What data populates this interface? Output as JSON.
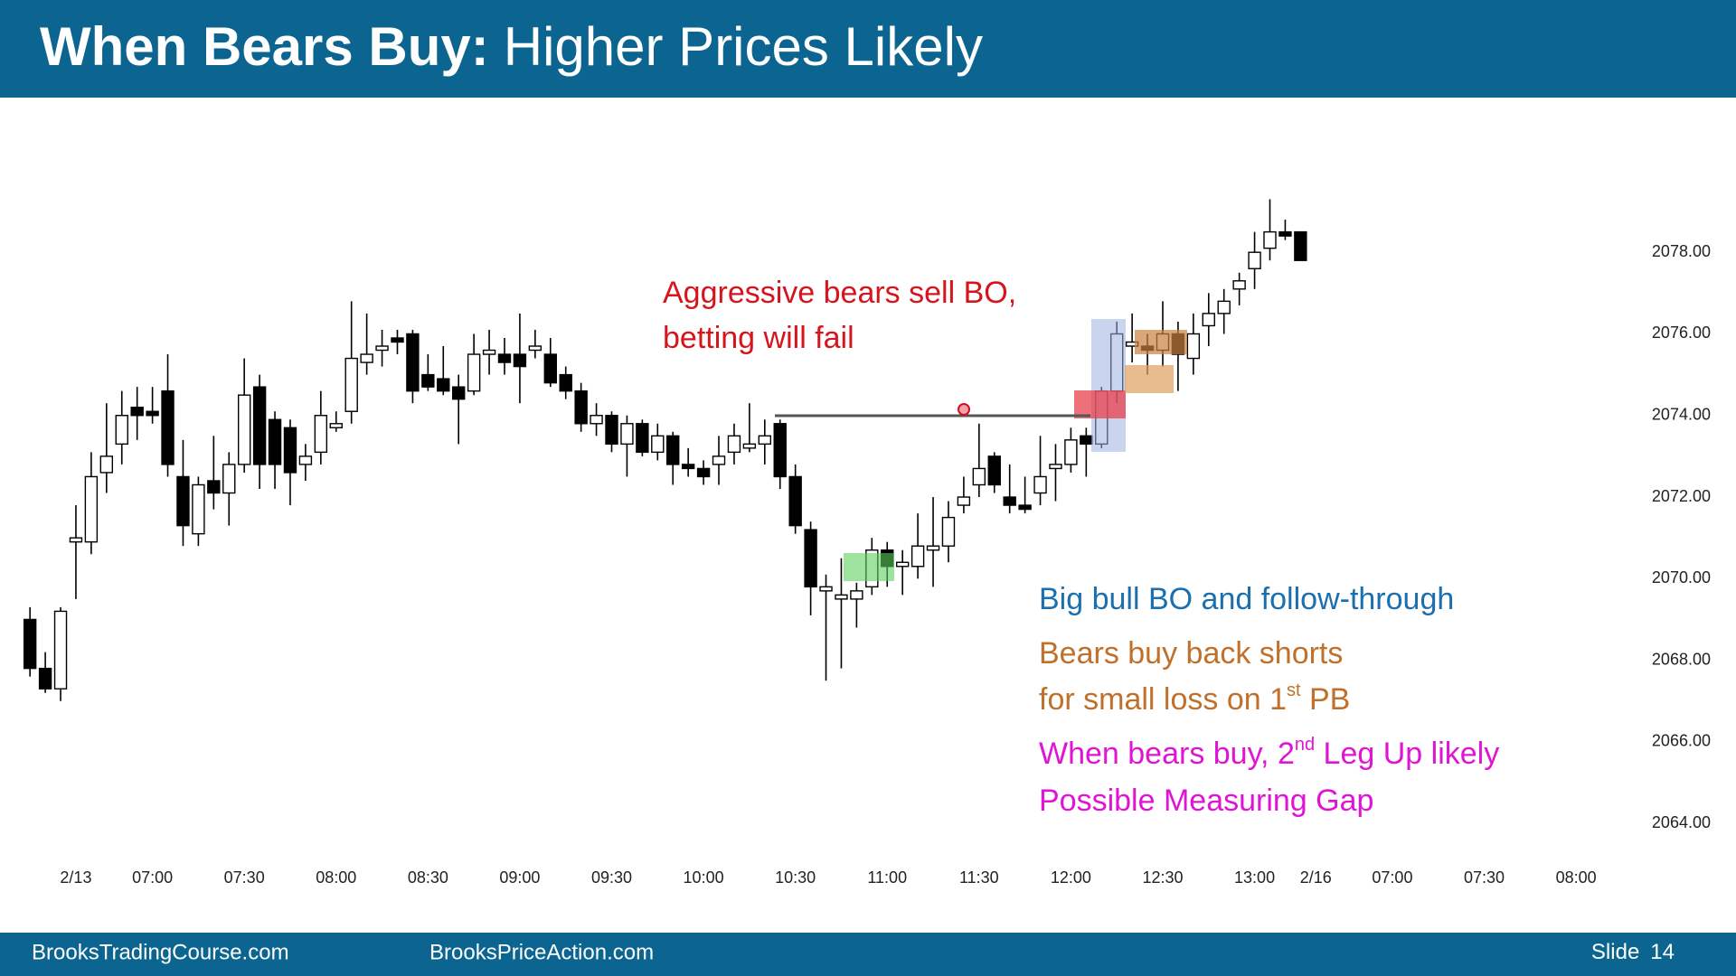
{
  "slide": {
    "title_bold": "When Bears Buy:",
    "title": "Higher Prices Likely",
    "footer_left": "BrooksTradingCourse.com",
    "footer_center": "BrooksPriceAction.com",
    "slide_label": "Slide",
    "slide_number": 14
  },
  "chart_data": {
    "type": "candlestick",
    "up_color": "#ffffff",
    "down_color": "#000000",
    "wick_color": "#000000",
    "grid": false,
    "categories": [
      null,
      null,
      null,
      "2/13",
      null,
      null,
      null,
      null,
      "07:00",
      null,
      null,
      null,
      null,
      null,
      "07:30",
      null,
      null,
      null,
      null,
      null,
      "08:00",
      null,
      null,
      null,
      null,
      null,
      "08:30",
      null,
      null,
      null,
      null,
      null,
      "09:00",
      null,
      null,
      null,
      null,
      null,
      "09:30",
      null,
      null,
      null,
      null,
      null,
      "10:00",
      null,
      null,
      null,
      null,
      null,
      "10:30",
      null,
      null,
      null,
      null,
      null,
      "11:00",
      null,
      null,
      null,
      null,
      null,
      "11:30",
      null,
      null,
      null,
      null,
      null,
      "12:00",
      null,
      null,
      null,
      null,
      null,
      "12:30",
      null,
      null,
      null,
      null,
      null,
      "13:00",
      null,
      null,
      null,
      "2/16",
      null,
      null,
      null,
      null,
      "07:00",
      null,
      null,
      null,
      null,
      null,
      "07:30",
      null,
      null,
      null,
      null,
      null,
      "08:00",
      null,
      null
    ],
    "open": [
      2069.0,
      2067.8,
      2067.3,
      2070.9,
      2070.9,
      2072.6,
      2073.3,
      2074.2,
      2074.1,
      2074.6,
      2072.5,
      2071.1,
      2072.4,
      2072.1,
      2072.8,
      2074.7,
      2073.9,
      2073.7,
      2072.8,
      2073.1,
      2073.7,
      2074.1,
      2075.3,
      2075.6,
      2075.9,
      2076.0,
      2075.0,
      2074.9,
      2074.7,
      2074.6,
      2075.5,
      2075.5,
      2075.5,
      2075.6,
      2075.5,
      2075.0,
      2074.6,
      2073.8,
      2074.0,
      2073.3,
      2073.8,
      2073.1,
      2073.5,
      2072.8,
      2072.7,
      2072.8,
      2073.1,
      2073.2,
      2073.3,
      2073.8,
      2072.5,
      2071.2,
      2069.7,
      2069.5,
      2069.5,
      2069.8,
      2070.7,
      2070.3,
      2070.3,
      2070.7,
      2070.8,
      2071.8,
      2072.3,
      2073.0,
      2072.0,
      2071.8,
      2072.1,
      2072.7,
      2072.8,
      2073.5,
      2073.3,
      2074.6,
      2075.7,
      2075.7,
      2075.6,
      2076.0,
      2075.4,
      2076.2,
      2076.5,
      2077.1,
      2077.6,
      2078.1,
      2078.5,
      2078.5,
      null,
      null,
      null,
      null,
      null,
      null,
      null,
      null,
      null,
      null,
      null,
      null,
      null,
      null,
      null,
      null,
      null,
      null,
      null,
      null
    ],
    "high": [
      2069.3,
      2068.2,
      2069.3,
      2071.8,
      2073.1,
      2074.3,
      2074.6,
      2074.7,
      2074.7,
      2075.5,
      2073.4,
      2072.5,
      2073.5,
      2073.1,
      2075.4,
      2075.0,
      2074.1,
      2073.9,
      2073.3,
      2074.6,
      2074.1,
      2076.8,
      2076.5,
      2076.1,
      2076.1,
      2076.1,
      2075.5,
      2075.7,
      2075.0,
      2076.0,
      2076.1,
      2075.9,
      2076.5,
      2076.1,
      2075.9,
      2075.2,
      2074.8,
      2074.3,
      2074.1,
      2074.0,
      2073.9,
      2073.8,
      2073.6,
      2073.2,
      2072.9,
      2073.5,
      2073.8,
      2074.3,
      2073.9,
      2073.9,
      2072.8,
      2071.4,
      2070.1,
      2070.5,
      2069.9,
      2071.0,
      2070.9,
      2070.7,
      2071.6,
      2072.0,
      2071.9,
      2072.5,
      2073.8,
      2073.1,
      2072.8,
      2072.5,
      2073.5,
      2073.3,
      2073.7,
      2073.7,
      2074.7,
      2076.3,
      2076.5,
      2076.0,
      2076.8,
      2076.3,
      2076.5,
      2077.0,
      2077.1,
      2077.5,
      2078.5,
      2079.3,
      2078.8,
      2078.5,
      null,
      null,
      null,
      null,
      null,
      null,
      null,
      null,
      null,
      null,
      null,
      null,
      null,
      null,
      null,
      null,
      null,
      null,
      null,
      null
    ],
    "low": [
      2067.6,
      2067.2,
      2067.0,
      2069.5,
      2070.6,
      2072.1,
      2072.8,
      2073.4,
      2073.8,
      2072.5,
      2070.8,
      2070.8,
      2071.7,
      2071.3,
      2072.6,
      2072.2,
      2072.2,
      2071.8,
      2072.4,
      2072.8,
      2073.6,
      2073.8,
      2075.0,
      2075.2,
      2075.5,
      2074.3,
      2074.6,
      2074.5,
      2073.3,
      2074.5,
      2075.0,
      2075.0,
      2074.3,
      2075.4,
      2074.7,
      2074.4,
      2073.6,
      2073.5,
      2073.1,
      2072.5,
      2073.0,
      2072.9,
      2072.3,
      2072.5,
      2072.3,
      2072.3,
      2072.8,
      2073.1,
      2072.8,
      2072.2,
      2071.1,
      2069.1,
      2067.5,
      2067.8,
      2068.8,
      2069.6,
      2069.8,
      2069.6,
      2070.0,
      2069.8,
      2070.4,
      2071.6,
      2072.0,
      2072.1,
      2071.6,
      2071.6,
      2071.8,
      2071.9,
      2072.6,
      2072.5,
      2073.2,
      2074.3,
      2075.3,
      2075.0,
      2075.2,
      2074.6,
      2075.0,
      2075.7,
      2076.0,
      2076.7,
      2077.1,
      2077.8,
      2078.3,
      2077.8,
      null,
      null,
      null,
      null,
      null,
      null,
      null,
      null,
      null,
      null,
      null,
      null,
      null,
      null,
      null,
      null,
      null,
      null,
      null,
      null
    ],
    "close": [
      2067.8,
      2067.3,
      2069.2,
      2071.0,
      2072.5,
      2073.0,
      2074.0,
      2074.0,
      2074.0,
      2072.8,
      2071.3,
      2072.3,
      2072.1,
      2072.8,
      2074.5,
      2072.8,
      2072.8,
      2072.6,
      2073.0,
      2074.0,
      2073.8,
      2075.4,
      2075.5,
      2075.7,
      2075.8,
      2074.6,
      2074.7,
      2074.6,
      2074.4,
      2075.5,
      2075.6,
      2075.3,
      2075.2,
      2075.7,
      2074.8,
      2074.6,
      2073.8,
      2074.0,
      2073.3,
      2073.8,
      2073.1,
      2073.5,
      2072.8,
      2072.7,
      2072.5,
      2073.0,
      2073.5,
      2073.3,
      2073.5,
      2072.5,
      2071.3,
      2069.8,
      2069.8,
      2069.6,
      2069.7,
      2070.7,
      2070.3,
      2070.4,
      2070.8,
      2070.8,
      2071.5,
      2072.0,
      2072.7,
      2072.3,
      2071.8,
      2071.7,
      2072.5,
      2072.8,
      2073.4,
      2073.3,
      2074.6,
      2076.0,
      2075.8,
      2075.6,
      2076.0,
      2075.5,
      2076.0,
      2076.5,
      2076.8,
      2077.3,
      2078.0,
      2078.5,
      2078.4,
      2077.8,
      null,
      null,
      null,
      null,
      null,
      null,
      null,
      null,
      null,
      null,
      null,
      null,
      null,
      null,
      null,
      null,
      null,
      null,
      null,
      null
    ],
    "ylim": [
      2063,
      2080
    ],
    "yticks": [
      {
        "value": 2064,
        "label": "2064.00"
      },
      {
        "value": 2066,
        "label": "2066.00"
      },
      {
        "value": 2068,
        "label": "2068.00"
      },
      {
        "value": 2070,
        "label": "2070.00"
      },
      {
        "value": 2072,
        "label": "2072.00"
      },
      {
        "value": 2074,
        "label": "2074.00"
      },
      {
        "value": 2076,
        "label": "2076.00"
      },
      {
        "value": 2078,
        "label": "2078.00"
      }
    ],
    "annotations": [
      {
        "color": "#d7141c",
        "lines": [
          {
            "text": "Aggressive bears sell BO,"
          },
          {
            "text": "betting will fail"
          }
        ]
      },
      {
        "color": "#1b6fae",
        "lines": [
          {
            "text": "Big bull BO and follow-through"
          }
        ]
      },
      {
        "color": "#c0702a",
        "lines": [
          {
            "text": "Bears buy back shorts"
          },
          {
            "text": "for small loss on 1",
            "sup": "st",
            "after": " PB"
          }
        ]
      },
      {
        "color": "#e014d4",
        "lines": [
          {
            "text": "When bears buy, 2",
            "sup": "nd",
            "after": " Leg Up likely"
          },
          {
            "text": "Possible Measuring Gap"
          }
        ]
      }
    ]
  }
}
